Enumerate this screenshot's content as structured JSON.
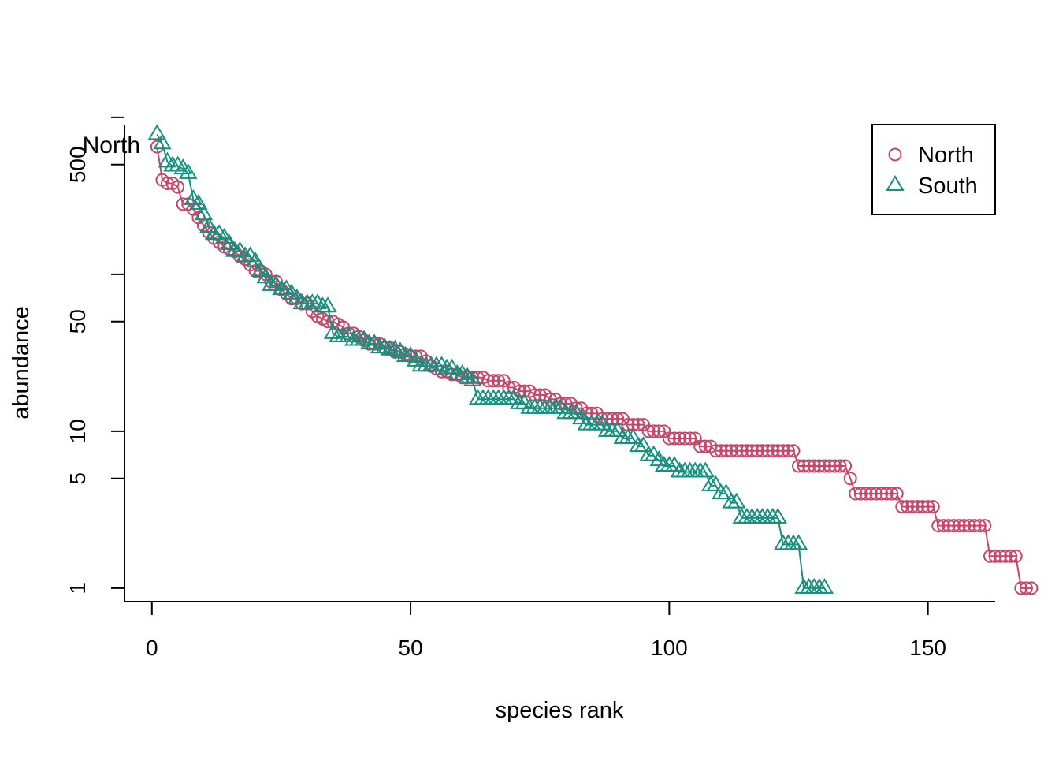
{
  "chart_data": {
    "type": "line",
    "xlabel": "species rank",
    "ylabel": "abundance",
    "xlim": [
      -5.3,
      163
    ],
    "ylim": [
      0.82,
      900
    ],
    "log_y": true,
    "grid": false,
    "legend_position": "top-right",
    "x_ticks": [
      {
        "value": 0,
        "label": "0"
      },
      {
        "value": 50,
        "label": "50"
      },
      {
        "value": 100,
        "label": "100"
      },
      {
        "value": 150,
        "label": "150"
      }
    ],
    "y_ticks": [
      {
        "value": 1,
        "label": "1"
      },
      {
        "value": 5,
        "label": "5"
      },
      {
        "value": 10,
        "label": "10"
      },
      {
        "value": 50,
        "label": "50"
      },
      {
        "value": 100,
        "label": ""
      },
      {
        "value": 500,
        "label": "500"
      },
      {
        "value": 1000,
        "label": ""
      }
    ],
    "clipped_label": "North",
    "series": [
      {
        "name": "North",
        "marker": "circle",
        "color": "#c74669",
        "runs": [
          [
            1,
            650
          ],
          [
            1,
            400
          ],
          [
            2,
            380
          ],
          [
            1,
            360
          ],
          [
            2,
            280
          ],
          [
            1,
            260
          ],
          [
            1,
            230
          ],
          [
            1,
            205
          ],
          [
            1,
            185
          ],
          [
            1,
            170
          ],
          [
            1,
            160
          ],
          [
            1,
            150
          ],
          [
            1,
            145
          ],
          [
            1,
            140
          ],
          [
            1,
            130
          ],
          [
            1,
            125
          ],
          [
            1,
            115
          ],
          [
            2,
            105
          ],
          [
            1,
            100
          ],
          [
            2,
            90
          ],
          [
            1,
            80
          ],
          [
            1,
            75
          ],
          [
            2,
            70
          ],
          [
            2,
            65
          ],
          [
            1,
            58
          ],
          [
            1,
            54
          ],
          [
            1,
            52
          ],
          [
            2,
            50
          ],
          [
            1,
            48
          ],
          [
            1,
            46
          ],
          [
            2,
            42
          ],
          [
            1,
            40
          ],
          [
            1,
            38
          ],
          [
            3,
            36
          ],
          [
            2,
            34
          ],
          [
            2,
            32
          ],
          [
            1,
            31
          ],
          [
            3,
            30
          ],
          [
            1,
            28
          ],
          [
            1,
            26
          ],
          [
            1,
            25
          ],
          [
            2,
            24
          ],
          [
            2,
            23
          ],
          [
            5,
            22
          ],
          [
            4,
            21
          ],
          [
            2,
            19
          ],
          [
            3,
            18
          ],
          [
            3,
            17
          ],
          [
            2,
            16
          ],
          [
            3,
            15
          ],
          [
            2,
            14
          ],
          [
            3,
            13
          ],
          [
            5,
            12
          ],
          [
            4,
            11
          ],
          [
            4,
            10
          ],
          [
            6,
            9
          ],
          [
            3,
            8
          ],
          [
            16,
            7.5
          ],
          [
            10,
            6
          ],
          [
            1,
            5
          ],
          [
            9,
            4
          ],
          [
            7,
            3.3
          ],
          [
            10,
            2.5
          ],
          [
            6,
            1.6
          ],
          [
            3,
            1
          ]
        ]
      },
      {
        "name": "South",
        "marker": "triangle",
        "color": "#16907f",
        "runs": [
          [
            1,
            780
          ],
          [
            1,
            680
          ],
          [
            1,
            520
          ],
          [
            2,
            490
          ],
          [
            1,
            470
          ],
          [
            1,
            440
          ],
          [
            1,
            300
          ],
          [
            1,
            280
          ],
          [
            1,
            240
          ],
          [
            1,
            200
          ],
          [
            2,
            180
          ],
          [
            1,
            170
          ],
          [
            1,
            155
          ],
          [
            2,
            140
          ],
          [
            2,
            130
          ],
          [
            1,
            120
          ],
          [
            1,
            105
          ],
          [
            1,
            95
          ],
          [
            2,
            85
          ],
          [
            2,
            80
          ],
          [
            1,
            75
          ],
          [
            1,
            70
          ],
          [
            4,
            65
          ],
          [
            2,
            62
          ],
          [
            1,
            42
          ],
          [
            3,
            40
          ],
          [
            3,
            38
          ],
          [
            2,
            36
          ],
          [
            2,
            34
          ],
          [
            2,
            33
          ],
          [
            1,
            32
          ],
          [
            2,
            30
          ],
          [
            1,
            28
          ],
          [
            5,
            26
          ],
          [
            2,
            25
          ],
          [
            2,
            23
          ],
          [
            1,
            22
          ],
          [
            1,
            21
          ],
          [
            8,
            16
          ],
          [
            2,
            15
          ],
          [
            7,
            14
          ],
          [
            3,
            13
          ],
          [
            1,
            12
          ],
          [
            4,
            11
          ],
          [
            3,
            10
          ],
          [
            3,
            9
          ],
          [
            2,
            8
          ],
          [
            2,
            7
          ],
          [
            1,
            6.5
          ],
          [
            3,
            6
          ],
          [
            6,
            5.5
          ],
          [
            2,
            4.5
          ],
          [
            2,
            4
          ],
          [
            2,
            3.5
          ],
          [
            8,
            2.8
          ],
          [
            4,
            1.9
          ],
          [
            5,
            1
          ]
        ]
      }
    ]
  }
}
